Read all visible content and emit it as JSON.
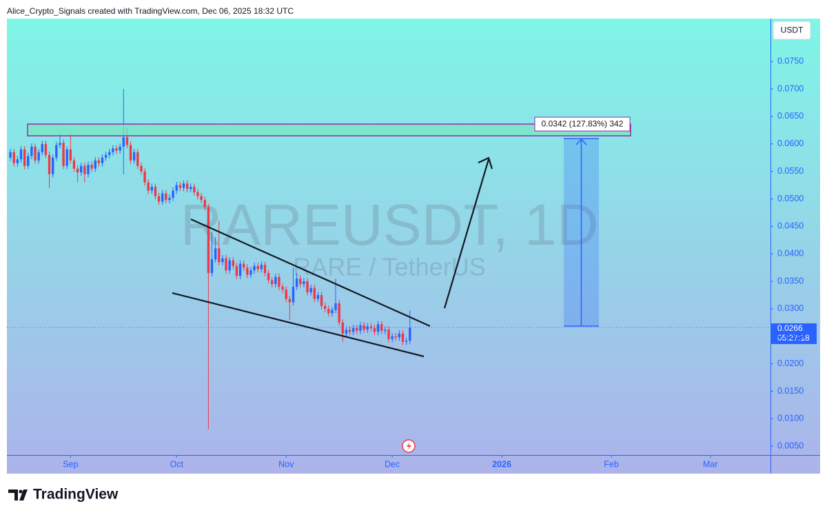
{
  "chart_data": {
    "type": "candlestick",
    "header": "Alice_Crypto_Signals created with TradingView.com, Dec 06, 2025 18:32 UTC",
    "watermark": "RAREUSDT, 1D",
    "watermark_subtitle": "RARE / TetherUS",
    "currency": "USDT",
    "annotation": "0.0342 (127.83%) 342",
    "brand": "TradingView",
    "last_price": 0.0266,
    "countdown": "05:27:18",
    "up_color": "#2962ff",
    "down_color": "#f23645",
    "xlim": [
      -18,
      198
    ],
    "ylim": [
      0.0034,
      0.0828
    ],
    "xticks": [
      {
        "value": 0,
        "label": "Sep"
      },
      {
        "value": 30,
        "label": "Oct"
      },
      {
        "value": 61,
        "label": "Nov"
      },
      {
        "value": 91,
        "label": "Dec"
      },
      {
        "value": 122,
        "label": "2026"
      },
      {
        "value": 153,
        "label": "Feb"
      },
      {
        "value": 181,
        "label": "Mar"
      }
    ],
    "yticks": [
      {
        "value": 0.005,
        "label": "0.0050"
      },
      {
        "value": 0.01,
        "label": "0.0100"
      },
      {
        "value": 0.015,
        "label": "0.0150"
      },
      {
        "value": 0.02,
        "label": "0.0200"
      },
      {
        "value": 0.025,
        "label": "0.0250"
      },
      {
        "value": 0.03,
        "label": "0.0300"
      },
      {
        "value": 0.035,
        "label": "0.0350"
      },
      {
        "value": 0.04,
        "label": "0.0400"
      },
      {
        "value": 0.045,
        "label": "0.0450"
      },
      {
        "value": 0.05,
        "label": "0.0500"
      },
      {
        "value": 0.055,
        "label": "0.0550"
      },
      {
        "value": 0.06,
        "label": "0.0600"
      },
      {
        "value": 0.065,
        "label": "0.0650"
      },
      {
        "value": 0.07,
        "label": "0.0700"
      },
      {
        "value": 0.075,
        "label": "0.0750"
      }
    ],
    "x": [
      -17,
      -16,
      -15,
      -14,
      -13,
      -12,
      -11,
      -10,
      -9,
      -8,
      -7,
      -6,
      -5,
      -4,
      -3,
      -2,
      -1,
      0,
      1,
      2,
      3,
      4,
      5,
      6,
      7,
      8,
      9,
      10,
      11,
      12,
      13,
      14,
      15,
      16,
      17,
      18,
      19,
      20,
      21,
      22,
      23,
      24,
      25,
      26,
      27,
      28,
      29,
      30,
      31,
      32,
      33,
      34,
      35,
      36,
      37,
      38,
      39,
      40,
      41,
      42,
      43,
      44,
      45,
      46,
      47,
      48,
      49,
      50,
      51,
      52,
      53,
      54,
      55,
      56,
      57,
      58,
      59,
      60,
      61,
      62,
      63,
      64,
      65,
      66,
      67,
      68,
      69,
      70,
      71,
      72,
      73,
      74,
      75,
      76,
      77,
      78,
      79,
      80,
      81,
      82,
      83,
      84,
      85,
      86,
      87,
      88,
      89,
      90,
      91,
      92,
      93,
      94,
      95,
      96
    ],
    "open": [
      0.0575,
      0.0585,
      0.0565,
      0.0572,
      0.059,
      0.056,
      0.0578,
      0.0595,
      0.057,
      0.0585,
      0.06,
      0.058,
      0.0545,
      0.0575,
      0.0598,
      0.0602,
      0.056,
      0.059,
      0.057,
      0.0555,
      0.0548,
      0.056,
      0.0545,
      0.0562,
      0.0555,
      0.057,
      0.0565,
      0.0575,
      0.058,
      0.0585,
      0.0592,
      0.0588,
      0.0595,
      0.0612,
      0.0598,
      0.057,
      0.0585,
      0.056,
      0.055,
      0.053,
      0.0515,
      0.0522,
      0.0505,
      0.0495,
      0.051,
      0.0498,
      0.0502,
      0.0515,
      0.0525,
      0.052,
      0.0528,
      0.0518,
      0.0522,
      0.0512,
      0.0505,
      0.0498,
      0.0485,
      0.0365,
      0.039,
      0.041,
      0.0385,
      0.0392,
      0.037,
      0.0388,
      0.0378,
      0.036,
      0.0382,
      0.0375,
      0.0362,
      0.037,
      0.0378,
      0.0372,
      0.038,
      0.0365,
      0.0352,
      0.0345,
      0.0358,
      0.034,
      0.0335,
      0.0318,
      0.0312,
      0.034,
      0.0355,
      0.0345,
      0.035,
      0.033,
      0.0338,
      0.0318,
      0.0325,
      0.0305,
      0.03,
      0.0292,
      0.0298,
      0.031,
      0.0275,
      0.0255,
      0.0262,
      0.0258,
      0.0265,
      0.026,
      0.027,
      0.0262,
      0.0268,
      0.0265,
      0.0258,
      0.0272,
      0.026,
      0.0262,
      0.0245,
      0.025,
      0.0248,
      0.0255,
      0.024,
      0.0242
    ],
    "high": [
      0.0591,
      0.0591,
      0.0578,
      0.0596,
      0.0596,
      0.0584,
      0.0601,
      0.0601,
      0.0591,
      0.0606,
      0.0606,
      0.0586,
      0.0581,
      0.0604,
      0.0618,
      0.0608,
      0.0596,
      0.0618,
      0.0576,
      0.0561,
      0.0566,
      0.0566,
      0.0568,
      0.0568,
      0.0576,
      0.0576,
      0.0581,
      0.0586,
      0.0591,
      0.0598,
      0.0598,
      0.0601,
      0.07,
      0.063,
      0.0604,
      0.0591,
      0.0591,
      0.0566,
      0.0556,
      0.0536,
      0.0528,
      0.0528,
      0.0511,
      0.0516,
      0.0516,
      0.0508,
      0.0521,
      0.0531,
      0.0531,
      0.0534,
      0.0534,
      0.0528,
      0.0528,
      0.0518,
      0.0511,
      0.0504,
      0.0491,
      0.044,
      0.043,
      0.046,
      0.0398,
      0.0398,
      0.0394,
      0.0394,
      0.0384,
      0.0388,
      0.0388,
      0.0381,
      0.0376,
      0.0384,
      0.0384,
      0.0386,
      0.0386,
      0.0371,
      0.0358,
      0.0364,
      0.0364,
      0.0346,
      0.0341,
      0.0324,
      0.0375,
      0.0365,
      0.0361,
      0.0356,
      0.0356,
      0.0344,
      0.0344,
      0.0331,
      0.0331,
      0.0311,
      0.0306,
      0.0304,
      0.0355,
      0.0316,
      0.0281,
      0.0268,
      0.0268,
      0.0271,
      0.0271,
      0.0276,
      0.0276,
      0.0274,
      0.0274,
      0.0271,
      0.0278,
      0.0278,
      0.0268,
      0.0268,
      0.0256,
      0.0256,
      0.0261,
      0.0261,
      0.0248,
      0.0297
    ],
    "low": [
      0.0569,
      0.0559,
      0.0559,
      0.0566,
      0.0554,
      0.0554,
      0.0572,
      0.0564,
      0.0564,
      0.0579,
      0.0574,
      0.052,
      0.0539,
      0.0569,
      0.0592,
      0.0554,
      0.0554,
      0.0564,
      0.0549,
      0.053,
      0.0542,
      0.053,
      0.0539,
      0.0549,
      0.0549,
      0.0559,
      0.0559,
      0.0569,
      0.0574,
      0.0579,
      0.0582,
      0.0582,
      0.0545,
      0.0592,
      0.0564,
      0.0564,
      0.0554,
      0.0544,
      0.0524,
      0.0509,
      0.0509,
      0.0499,
      0.0489,
      0.0489,
      0.0492,
      0.0492,
      0.0496,
      0.0509,
      0.0514,
      0.0514,
      0.0512,
      0.0512,
      0.0506,
      0.0499,
      0.0492,
      0.0479,
      0.0081,
      0.0359,
      0.0384,
      0.0379,
      0.0379,
      0.0364,
      0.0364,
      0.0372,
      0.0354,
      0.0354,
      0.0369,
      0.0356,
      0.0356,
      0.0364,
      0.0366,
      0.0366,
      0.0359,
      0.0346,
      0.0339,
      0.0339,
      0.0334,
      0.0329,
      0.0312,
      0.028,
      0.0306,
      0.0334,
      0.0339,
      0.0339,
      0.0324,
      0.0324,
      0.0312,
      0.0312,
      0.0299,
      0.0294,
      0.0286,
      0.0286,
      0.0292,
      0.0269,
      0.024,
      0.0249,
      0.0252,
      0.0252,
      0.0254,
      0.0254,
      0.0256,
      0.0256,
      0.0259,
      0.0252,
      0.0252,
      0.0254,
      0.0254,
      0.0239,
      0.0239,
      0.0242,
      0.0242,
      0.0234,
      0.0234,
      0.0236
    ],
    "close": [
      0.0585,
      0.0565,
      0.0572,
      0.059,
      0.056,
      0.0578,
      0.0595,
      0.057,
      0.0585,
      0.06,
      0.058,
      0.0545,
      0.0575,
      0.0598,
      0.0602,
      0.056,
      0.059,
      0.057,
      0.0555,
      0.0548,
      0.056,
      0.0545,
      0.0562,
      0.0555,
      0.057,
      0.0565,
      0.0575,
      0.058,
      0.0585,
      0.0592,
      0.0588,
      0.0595,
      0.0612,
      0.0598,
      0.057,
      0.0585,
      0.056,
      0.055,
      0.053,
      0.0515,
      0.0522,
      0.0505,
      0.0495,
      0.051,
      0.0498,
      0.0502,
      0.0515,
      0.0525,
      0.052,
      0.0528,
      0.0518,
      0.0522,
      0.0512,
      0.0505,
      0.0498,
      0.0485,
      0.0365,
      0.039,
      0.041,
      0.0385,
      0.0392,
      0.037,
      0.0388,
      0.0378,
      0.036,
      0.0382,
      0.0375,
      0.0362,
      0.037,
      0.0378,
      0.0372,
      0.038,
      0.0365,
      0.0352,
      0.0345,
      0.0358,
      0.034,
      0.0335,
      0.0318,
      0.0312,
      0.034,
      0.0355,
      0.0345,
      0.035,
      0.033,
      0.0338,
      0.0318,
      0.0325,
      0.0305,
      0.03,
      0.0292,
      0.0298,
      0.031,
      0.0275,
      0.0255,
      0.0262,
      0.0258,
      0.0265,
      0.026,
      0.027,
      0.0262,
      0.0268,
      0.0265,
      0.0258,
      0.0272,
      0.026,
      0.0262,
      0.0245,
      0.025,
      0.0248,
      0.0255,
      0.024,
      0.0242,
      0.0266
    ]
  }
}
